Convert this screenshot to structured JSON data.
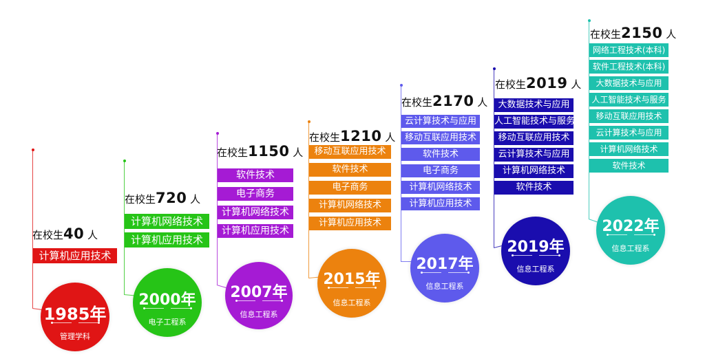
{
  "stages": [
    {
      "year": "1985年",
      "dept": "管理学科",
      "students_prefix": "在校生",
      "students_num": "40",
      "students_suffix": "人",
      "color": "#e01515",
      "majors": [
        "计算机应用技术"
      ]
    },
    {
      "year": "2000年",
      "dept": "电子工程系",
      "students_prefix": "在校生",
      "students_num": "720",
      "students_suffix": "人",
      "color": "#26c417",
      "majors": [
        "计算机网络技术",
        "计算机应用技术"
      ]
    },
    {
      "year": "2007年",
      "dept": "信息工程系",
      "students_prefix": "在校生",
      "students_num": "1150",
      "students_suffix": "人",
      "color": "#a51bd4",
      "majors": [
        "软件技术",
        "电子商务",
        "计算机网络技术",
        "计算机应用技术"
      ]
    },
    {
      "year": "2015年",
      "dept": "信息工程系",
      "students_prefix": "在校生",
      "students_num": "1210",
      "students_suffix": "人",
      "color": "#ec820e",
      "majors": [
        "移动互联应用技术",
        "软件技术",
        "电子商务",
        "计算机网络技术",
        "计算机应用技术"
      ]
    },
    {
      "year": "2017年",
      "dept": "信息工程系",
      "students_prefix": "在校生",
      "students_num": "2170",
      "students_suffix": "人",
      "color": "#5e5aec",
      "majors": [
        "云计算技术与应用",
        "移动互联应用技术",
        "软件技术",
        "电子商务",
        "计算机网络技术",
        "计算机应用技术"
      ]
    },
    {
      "year": "2019年",
      "dept": "信息工程系",
      "students_prefix": "在校生",
      "students_num": "2019",
      "students_suffix": "人",
      "color": "#1a0dae",
      "majors": [
        "大数据技术与应用",
        "人工智能技术与服务",
        "移动互联应用技术",
        "云计算技术与应用",
        "计算机网络技术",
        "软件技术"
      ]
    },
    {
      "year": "2022年",
      "dept": "信息工程系",
      "students_prefix": "在校生",
      "students_num": "2150",
      "students_suffix": "人",
      "color": "#1ec1ad",
      "majors": [
        "网络工程技术(本科)",
        "软件工程技术(本科)",
        "大数据技术与应用",
        "人工智能技术与服务",
        "移动互联应用技术",
        "云计算技术与应用",
        "计算机网络技术",
        "软件技术"
      ]
    }
  ]
}
